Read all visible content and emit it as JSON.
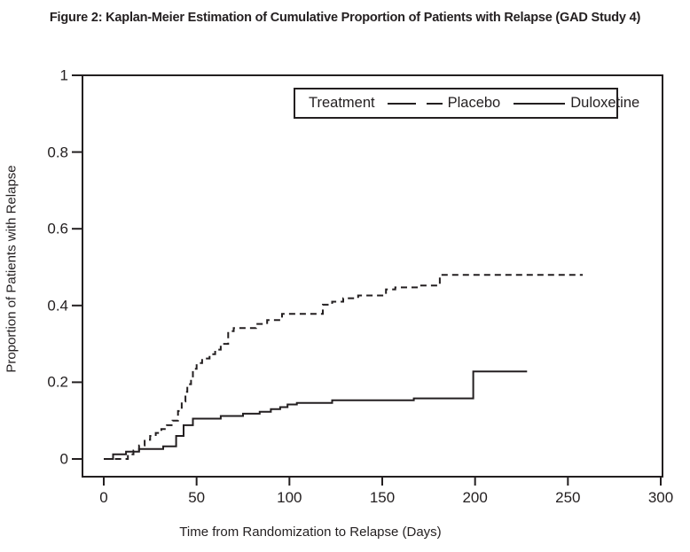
{
  "title": "Figure 2: Kaplan-Meier Estimation of Cumulative Proportion of Patients with Relapse (GAD Study 4)",
  "colors": {
    "line": "#231f20",
    "text": "#231f20",
    "background": "#ffffff"
  },
  "legend": {
    "title": "Treatment"
  },
  "chart_data": {
    "type": "line",
    "subtype": "kaplan-meier-step",
    "title": "Figure 2: Kaplan-Meier Estimation of Cumulative Proportion of Patients with Relapse (GAD Study 4)",
    "xlabel": "Time from Randomization to Relapse (Days)",
    "ylabel": "Proportion of Patients with Relapse",
    "xlim": [
      0,
      300
    ],
    "ylim": [
      0,
      1
    ],
    "xticks": [
      0,
      50,
      100,
      150,
      200,
      250,
      300
    ],
    "xtick_labels": [
      "0",
      "50",
      "100",
      "150",
      "200",
      "250",
      "300"
    ],
    "yticks": [
      0,
      0.2,
      0.4,
      0.6,
      0.8,
      1
    ],
    "ytick_labels": [
      "0",
      "0.2",
      "0.4",
      "0.6",
      "0.8",
      "1"
    ],
    "grid": false,
    "legend_position": "top-center-inside",
    "series": [
      {
        "name": "Placebo",
        "style": "dashed",
        "color": "#231f20",
        "points": [
          [
            6,
            0
          ],
          [
            13,
            0.012
          ],
          [
            16,
            0.022
          ],
          [
            19,
            0.035
          ],
          [
            22,
            0.05
          ],
          [
            25,
            0.06
          ],
          [
            28,
            0.068
          ],
          [
            31,
            0.078
          ],
          [
            34,
            0.088
          ],
          [
            37,
            0.1
          ],
          [
            40,
            0.125
          ],
          [
            42,
            0.15
          ],
          [
            44,
            0.175
          ],
          [
            45,
            0.195
          ],
          [
            47,
            0.215
          ],
          [
            48,
            0.235
          ],
          [
            50,
            0.25
          ],
          [
            53,
            0.262
          ],
          [
            57,
            0.273
          ],
          [
            60,
            0.285
          ],
          [
            63,
            0.3
          ],
          [
            67,
            0.333
          ],
          [
            70,
            0.341
          ],
          [
            82,
            0.352
          ],
          [
            88,
            0.362
          ],
          [
            96,
            0.378
          ],
          [
            118,
            0.402
          ],
          [
            123,
            0.41
          ],
          [
            129,
            0.419
          ],
          [
            137,
            0.426
          ],
          [
            152,
            0.442
          ],
          [
            157,
            0.447
          ],
          [
            170,
            0.452
          ],
          [
            181,
            0.48
          ],
          [
            258,
            0.48
          ]
        ]
      },
      {
        "name": "Duloxetine",
        "style": "solid",
        "color": "#231f20",
        "points": [
          [
            0,
            0
          ],
          [
            5,
            0.012
          ],
          [
            12,
            0.019
          ],
          [
            19,
            0.026
          ],
          [
            32,
            0.033
          ],
          [
            39,
            0.06
          ],
          [
            43,
            0.088
          ],
          [
            48,
            0.105
          ],
          [
            63,
            0.112
          ],
          [
            75,
            0.118
          ],
          [
            84,
            0.123
          ],
          [
            90,
            0.13
          ],
          [
            95,
            0.135
          ],
          [
            99,
            0.142
          ],
          [
            104,
            0.146
          ],
          [
            123,
            0.153
          ],
          [
            167,
            0.158
          ],
          [
            199,
            0.228
          ],
          [
            228,
            0.228
          ]
        ]
      }
    ]
  }
}
